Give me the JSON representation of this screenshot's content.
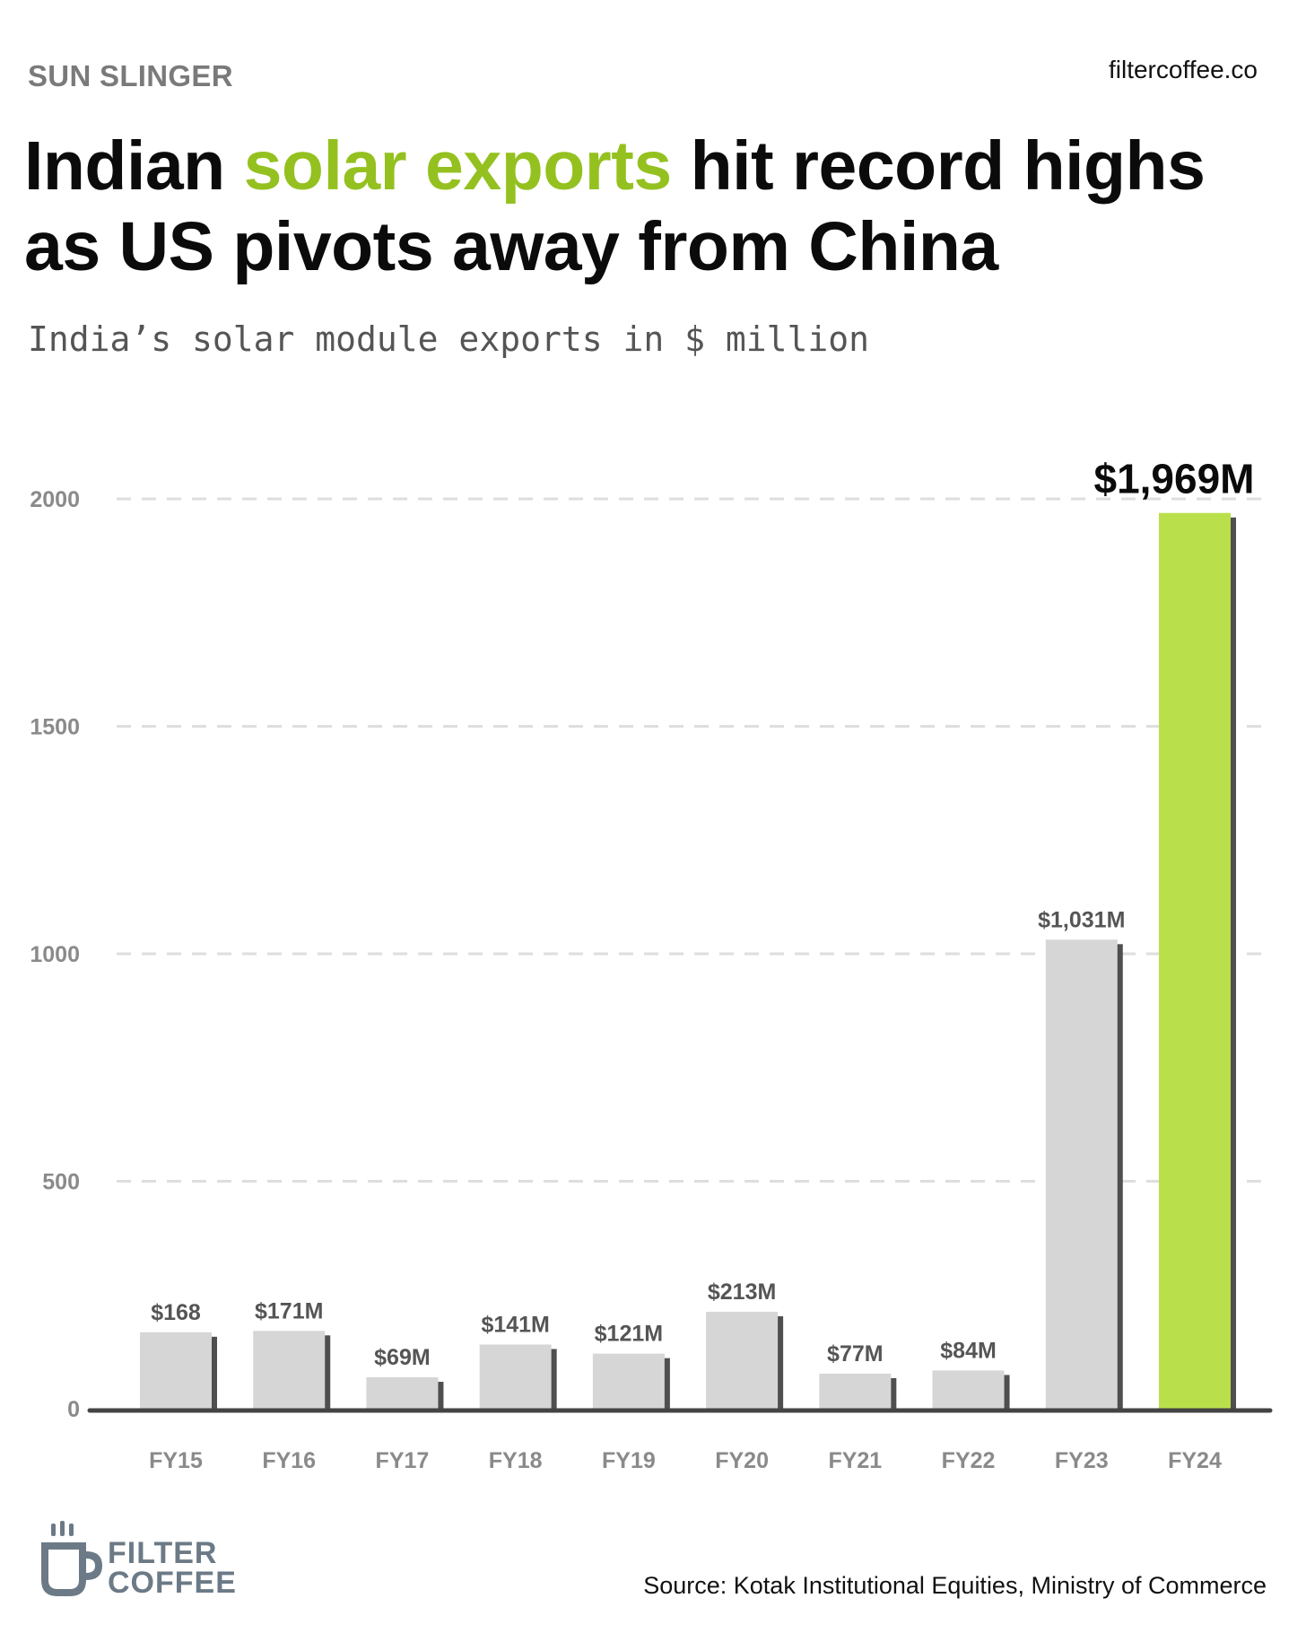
{
  "header": {
    "kicker": "SUN SLINGER",
    "site": "filtercoffee.co"
  },
  "headline": {
    "part1": "Indian ",
    "accent": "solar exports",
    "part2": " hit record highs as US pivots away from China"
  },
  "subtitle": "India’s solar module exports in $ million",
  "chart_data": {
    "type": "bar",
    "title": "",
    "xlabel": "",
    "ylabel": "",
    "categories": [
      "FY15",
      "FY16",
      "FY17",
      "FY18",
      "FY19",
      "FY20",
      "FY21",
      "FY22",
      "FY23",
      "FY24"
    ],
    "values": [
      168,
      171,
      69,
      141,
      121,
      213,
      77,
      84,
      1031,
      1969
    ],
    "data_labels": [
      "$168",
      "$171M",
      "$69M",
      "$141M",
      "$121M",
      "$213M",
      "$77M",
      "$84M",
      "$1,031M",
      "$1,969M"
    ],
    "highlight_index": 9,
    "ylim": [
      0,
      2000
    ],
    "yticks": [
      0,
      500,
      1000,
      1500,
      2000
    ],
    "grid": "horizontal dashed",
    "colors": {
      "bar": "#d6d6d6",
      "highlight": "#b9e04b",
      "shadow": "#4f4f4f",
      "grid": "#dedede",
      "axis": "#444444",
      "tick_text": "#8a8a8a",
      "label_text": "#555555"
    }
  },
  "footer": {
    "logo_line1": "FILTER",
    "logo_line2": "COFFEE",
    "logo_icon": "coffee-mug-icon",
    "source": "Source: Kotak Institutional Equities, Ministry of Commerce"
  }
}
